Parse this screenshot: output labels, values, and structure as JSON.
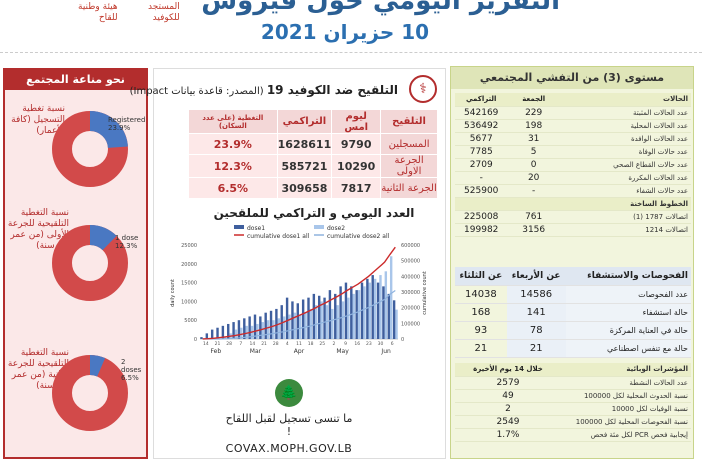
{
  "header": {
    "title": "التقرير اليومي حول فيروس الكورونا في لبنان",
    "date": "10 حزيران 2021",
    "logo_left_line1": "هيئة وطنية",
    "logo_left_line2": "للقاح",
    "logo_mid_line1": "المستجد",
    "logo_mid_line2": "للكوفيد"
  },
  "immunity": {
    "title": "نحو مناعة المجتمع",
    "items": [
      {
        "label": "نسبة تغطية التسجيل (كافة الأعمار)",
        "legend": "Registered",
        "pct_text": "23.9%",
        "value": 23.9
      },
      {
        "label": "نسبة التغطية التلقيحية للجرعة الأولى (من عمر 18 سنة)",
        "legend": "1 dose",
        "pct_text": "12.3%",
        "value": 12.3
      },
      {
        "label": "نسبة التغطية التلقيحية للجرعة الثانية (من عمر 18 سنة)",
        "legend": "2 doses",
        "pct_text": "6.5%",
        "value": 6.5
      }
    ],
    "colors": {
      "filled": "#4a78c2",
      "remaining": "#d24a4a"
    }
  },
  "vaccination": {
    "title_bold": "التلقيح ضد الكوفيد 19",
    "title_source": "(المصدر: قاعدة بيانات Impact)",
    "columns": [
      "التلقيح",
      "ليوم امس",
      "التراكمي",
      "التغطية (على عدد السكان)"
    ],
    "rows": [
      {
        "label": "المسجلين",
        "yesterday": "9790",
        "cumulative": "1628611",
        "coverage": "23.9%"
      },
      {
        "label": "الجرعة الاولى",
        "yesterday": "10290",
        "cumulative": "585721",
        "coverage": "12.3%"
      },
      {
        "label": "الجرعة الثانية",
        "yesterday": "7817",
        "cumulative": "309658",
        "coverage": "6.5%"
      }
    ],
    "chart_title": "العدد اليومي و التراكمي للملقحين"
  },
  "chart_data": {
    "type": "bar",
    "title": "",
    "ylabel": "daily count",
    "y2label": "cumulative count",
    "ylim": [
      0,
      25000
    ],
    "y2lim": [
      0,
      600000
    ],
    "yticks": [
      "0",
      "5000",
      "10000",
      "15000",
      "20000",
      "25000"
    ],
    "y2ticks": [
      "0",
      "100000",
      "200000",
      "300000",
      "400000",
      "500000",
      "600000"
    ],
    "xticks": [
      "Feb",
      "Mar",
      "Apr",
      "May",
      "Jun"
    ],
    "x_day_labels": [
      "14",
      "21",
      "28",
      "7",
      "14",
      "21",
      "28",
      "4",
      "11",
      "18",
      "25",
      "2",
      "9",
      "16",
      "23",
      "30",
      "6"
    ],
    "legend": [
      "dose1",
      "dose2",
      "cumulative dose1 all",
      "cumulative dose2 all"
    ],
    "series": [
      {
        "name": "dose1",
        "values": [
          500,
          1500,
          2500,
          3000,
          3500,
          4000,
          4500,
          5000,
          5500,
          6000,
          6500,
          6000,
          7000,
          7500,
          8000,
          9000,
          11000,
          10000,
          9500,
          10500,
          11000,
          12000,
          11500,
          11000,
          13000,
          12000,
          14000,
          15000,
          14000,
          13000,
          15000,
          16000,
          17000,
          15000,
          14000,
          12000,
          10290
        ]
      },
      {
        "name": "dose2",
        "values": [
          0,
          0,
          0,
          0,
          500,
          1500,
          2500,
          3000,
          3500,
          3500,
          4000,
          4500,
          5000,
          5000,
          5500,
          6000,
          6500,
          7000,
          6500,
          7000,
          8000,
          9000,
          10000,
          9000,
          8000,
          9000,
          10000,
          11000,
          12000,
          13000,
          14000,
          15000,
          16000,
          17000,
          18000,
          22000,
          7817
        ]
      },
      {
        "name": "cumulative dose1 all",
        "values": [
          500,
          2000,
          4500,
          8000,
          12000,
          17000,
          22000,
          28000,
          35000,
          43000,
          52000,
          60000,
          70000,
          80000,
          92000,
          105000,
          120000,
          135000,
          150000,
          165000,
          180000,
          197000,
          215000,
          232000,
          250000,
          268000,
          288000,
          310000,
          330000,
          350000,
          375000,
          400000,
          430000,
          460000,
          490000,
          540000,
          585721
        ]
      },
      {
        "name": "cumulative dose2 all",
        "values": [
          0,
          0,
          0,
          0,
          500,
          2000,
          4500,
          7500,
          11000,
          15000,
          19000,
          24000,
          29000,
          34000,
          40000,
          46000,
          53000,
          60000,
          67000,
          74000,
          82000,
          91000,
          101000,
          110000,
          118000,
          127000,
          137000,
          148000,
          160000,
          173000,
          187000,
          202000,
          218000,
          235000,
          253000,
          285000,
          309658
        ]
      }
    ],
    "colors": {
      "dose1": "#3f5f9e",
      "dose2": "#a9c6ea",
      "cum1": "#cc2b2b",
      "cum2": "#8fb3de"
    }
  },
  "covax": {
    "slogan": "ما تنسى تسجيل لقبل اللقاح !",
    "url": "COVAX.MOPH.GOV.LB"
  },
  "community": {
    "title": "مستوى (3) من التفشي المجتمعي",
    "cases_header": {
      "label": "الحالات",
      "daily": "الجمعة",
      "cumulative": "التراكمي"
    },
    "cases": [
      {
        "label": "عدد الحالات المثبتة",
        "daily": "229",
        "cumulative": "542169"
      },
      {
        "label": "عدد الحالات المحلية",
        "daily": "198",
        "cumulative": "536492"
      },
      {
        "label": "عدد الحالات الوافدة",
        "daily": "31",
        "cumulative": "5677"
      },
      {
        "label": "عدد حالات الوفاة",
        "daily": "5",
        "cumulative": "7785"
      },
      {
        "label": "عدد حالات القطاع الصحي",
        "daily": "0",
        "cumulative": "2709"
      },
      {
        "label": "عدد الحالات المكررة",
        "daily": "20",
        "cumulative": "-"
      },
      {
        "label": "عدد حالات الشفاء",
        "daily": "-",
        "cumulative": "525900"
      }
    ],
    "hotline_header": "الخطوط الساخنة",
    "hotlines": [
      {
        "label": "اتصالات 1787 (1)",
        "daily": "761",
        "cumulative": "225008"
      },
      {
        "label": "اتصالات 1214",
        "daily": "3156",
        "cumulative": "199982"
      }
    ],
    "hosp_header": {
      "label": "الفحوصات والاستشفاء",
      "week": "عن الأربعاء",
      "prev": "عن الثلثاء"
    },
    "hosp": [
      {
        "label": "عدد الفحوصات",
        "week": "14586",
        "prev": "14038"
      },
      {
        "label": "حالة استشفاء",
        "week": "141",
        "prev": "168"
      },
      {
        "label": "حالة في العناية المركزة",
        "week": "78",
        "prev": "93"
      },
      {
        "label": "حالة مع تنفس اصطناعي",
        "week": "21",
        "prev": "21"
      }
    ],
    "indicators_header": {
      "label": "المؤشرات الوبائية",
      "period": "خلال 14 يوم الأخيرة"
    },
    "indicators": [
      {
        "label": "عدد الحالات النشطة",
        "value": "2579"
      },
      {
        "label": "نسبة الحدوث المحلية لكل 100000",
        "value": "49"
      },
      {
        "label": "نسبة الوفيات لكل 10000",
        "value": "2"
      },
      {
        "label": "نسبة الفحوصات المحلية لكل 100000",
        "value": "2549"
      },
      {
        "label": "إيجابية فحص PCR لكل مئة فحص",
        "value": "1.7%"
      }
    ]
  }
}
